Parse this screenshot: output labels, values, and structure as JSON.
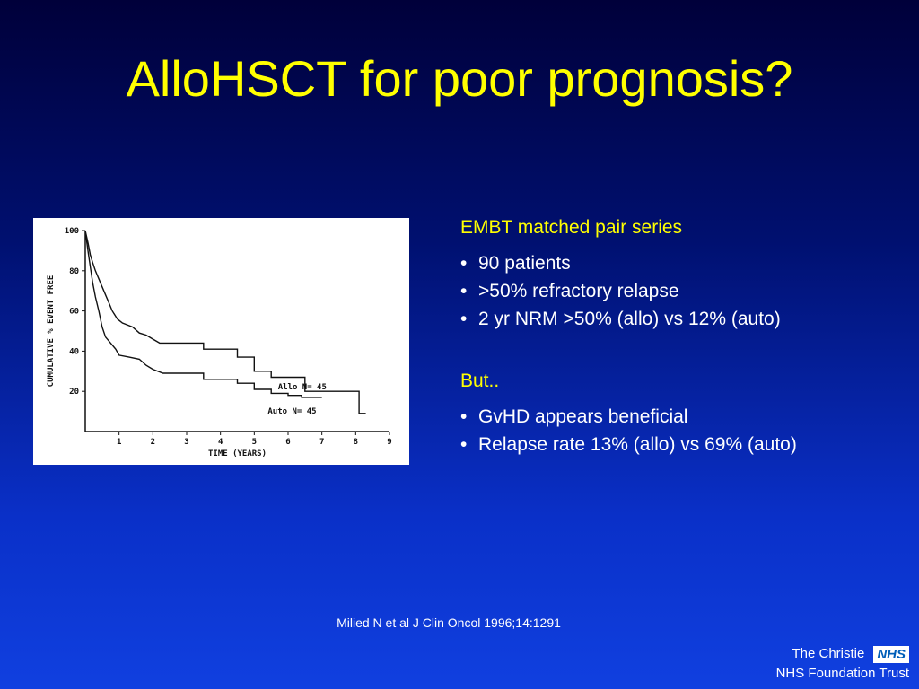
{
  "slide": {
    "title": "AlloHSCT for poor prognosis?",
    "citation": "Milied N et al J Clin Oncol 1996;14:1291"
  },
  "section1": {
    "heading": "EMBT matched pair series",
    "bullets": [
      "90 patients",
      ">50% refractory relapse",
      "2 yr NRM >50% (allo) vs 12% (auto)"
    ]
  },
  "section2": {
    "heading": "But..",
    "bullets": [
      "GvHD appears beneficial",
      "Relapse rate 13% (allo) vs 69% (auto)"
    ]
  },
  "branding": {
    "org_line1": "The Christie",
    "badge": "NHS",
    "org_line2": "NHS Foundation Trust"
  },
  "colors": {
    "title": "#ffff00",
    "heading": "#ffff00",
    "body_text": "#ffffff",
    "nhs_blue": "#005eb8"
  },
  "chart_data": {
    "type": "line",
    "xlabel": "TIME (YEARS)",
    "ylabel": "CUMULATIVE % EVENT FREE",
    "xlim": [
      0,
      9
    ],
    "ylim": [
      0,
      100
    ],
    "x_ticks": [
      "1",
      "2",
      "3",
      "4",
      "5",
      "6",
      "7",
      "8",
      "9"
    ],
    "y_ticks": [
      "20",
      "40",
      "60",
      "80",
      "100"
    ],
    "series": [
      {
        "name": "Allo N= 45",
        "label_at": [
          5.7,
          21
        ],
        "points": [
          [
            0,
            100
          ],
          [
            0.08,
            94
          ],
          [
            0.15,
            88
          ],
          [
            0.22,
            84
          ],
          [
            0.3,
            80
          ],
          [
            0.4,
            76
          ],
          [
            0.5,
            72
          ],
          [
            0.6,
            68
          ],
          [
            0.7,
            64
          ],
          [
            0.8,
            60
          ],
          [
            0.95,
            56
          ],
          [
            1.1,
            54
          ],
          [
            1.4,
            52
          ],
          [
            1.6,
            49
          ],
          [
            1.8,
            48
          ],
          [
            2.0,
            46
          ],
          [
            2.2,
            44
          ],
          [
            2.5,
            44
          ],
          [
            3.5,
            44
          ],
          [
            3.5,
            41
          ],
          [
            4.5,
            41
          ],
          [
            4.5,
            37
          ],
          [
            5.0,
            37
          ],
          [
            5.0,
            30
          ],
          [
            5.5,
            30
          ],
          [
            5.5,
            27
          ],
          [
            6.5,
            27
          ],
          [
            6.5,
            20
          ],
          [
            8.1,
            20
          ],
          [
            8.1,
            9
          ],
          [
            8.3,
            9
          ]
        ]
      },
      {
        "name": "Auto N= 45",
        "label_at": [
          5.4,
          9
        ],
        "points": [
          [
            0,
            100
          ],
          [
            0.08,
            90
          ],
          [
            0.15,
            82
          ],
          [
            0.22,
            74
          ],
          [
            0.3,
            67
          ],
          [
            0.4,
            60
          ],
          [
            0.5,
            52
          ],
          [
            0.6,
            47
          ],
          [
            0.75,
            44
          ],
          [
            0.9,
            41
          ],
          [
            1.0,
            38
          ],
          [
            1.3,
            37
          ],
          [
            1.6,
            36
          ],
          [
            1.8,
            33
          ],
          [
            2.0,
            31
          ],
          [
            2.3,
            29
          ],
          [
            3.5,
            29
          ],
          [
            3.5,
            26
          ],
          [
            4.5,
            26
          ],
          [
            4.5,
            24
          ],
          [
            5.0,
            24
          ],
          [
            5.0,
            21
          ],
          [
            5.5,
            21
          ],
          [
            5.5,
            19
          ],
          [
            6.0,
            19
          ],
          [
            6.0,
            18
          ],
          [
            6.4,
            18
          ],
          [
            6.4,
            17
          ],
          [
            7.0,
            17
          ],
          [
            7.0,
            17
          ]
        ]
      }
    ]
  }
}
